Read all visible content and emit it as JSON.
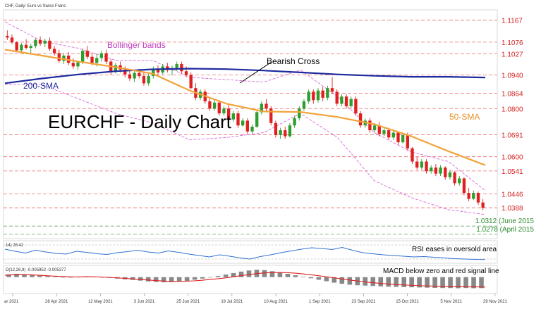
{
  "window_title": "CHF, Daily: Euro vs Swiss Franc",
  "chart_data": [
    {
      "type": "candlestick",
      "title": "EURCHF - Daily Chart",
      "ylim": [
        1.026,
        1.121
      ],
      "price_levels": [
        "1.1167",
        "1.1076",
        "1.1027",
        "1.0940",
        "1.0864",
        "1.0800",
        "1.0691",
        "1.0600",
        "1.0541",
        "1.0446",
        "1.0388"
      ],
      "price_level_values": [
        1.1167,
        1.1076,
        1.1027,
        1.094,
        1.0864,
        1.08,
        1.0691,
        1.06,
        1.0541,
        1.0446,
        1.0388
      ],
      "extra_levels": [
        {
          "label": "1.0312 (June 2015",
          "value": 1.0312
        },
        {
          "label": "1.0278 (April 2015",
          "value": 1.0278
        }
      ],
      "annotations": [
        "Bollinger bands",
        "Bearish Cross",
        "200-SMA",
        "50-SMA"
      ],
      "x_ticks": [
        "ar 2021",
        "28 Apr 2021",
        "12 May 2021",
        "3 Jun 2021",
        "25 Jun 2021",
        "19 Jul 2021",
        "10 Aug 2021",
        "1 Sep 2021",
        "23 Sep 2021",
        "15 Oct 2021",
        "5 Nov 2021",
        "29 Nov 2021"
      ],
      "series": [
        {
          "name": "200-SMA",
          "color": "#1c2a9e",
          "values": [
            1.0905,
            1.0925,
            1.0942,
            1.0955,
            1.0963,
            1.0966,
            1.0964,
            1.0958,
            1.095,
            1.0942,
            1.0936,
            1.0932,
            1.0932,
            1.0929
          ]
        },
        {
          "name": "50-SMA",
          "color": "#f2a33a",
          "values": [
            1.1045,
            1.102,
            1.0995,
            1.0972,
            1.0945,
            1.0875,
            1.082,
            1.0788,
            1.0786,
            1.0765,
            1.0735,
            1.0685,
            1.0623,
            1.0565
          ]
        },
        {
          "name": "Bollinger bands",
          "color": "#d96bd9",
          "upper": [
            1.116,
            1.108,
            1.105,
            1.1,
            1.1,
            1.093,
            1.092,
            1.091,
            1.096,
            1.085,
            1.07,
            1.062,
            1.058,
            1.046
          ],
          "lower": [
            1.09,
            1.09,
            1.084,
            1.078,
            1.074,
            1.067,
            1.068,
            1.07,
            1.078,
            1.068,
            1.05,
            1.043,
            1.038,
            1.036
          ]
        }
      ],
      "candles": [
        [
          1.1102,
          1.1125,
          1.1085,
          1.1095
        ],
        [
          1.1095,
          1.1108,
          1.1068,
          1.1075
        ],
        [
          1.1075,
          1.108,
          1.1035,
          1.1042
        ],
        [
          1.1042,
          1.1072,
          1.103,
          1.1065
        ],
        [
          1.1065,
          1.1088,
          1.1045,
          1.1052
        ],
        [
          1.1052,
          1.107,
          1.1028,
          1.106
        ],
        [
          1.106,
          1.1092,
          1.105,
          1.1085
        ],
        [
          1.1085,
          1.11,
          1.106,
          1.107
        ],
        [
          1.107,
          1.109,
          1.1055,
          1.1082
        ],
        [
          1.1082,
          1.1095,
          1.104,
          1.1048
        ],
        [
          1.1048,
          1.106,
          1.102,
          1.103
        ],
        [
          1.103,
          1.1045,
          1.099,
          1.0998
        ],
        [
          1.0998,
          1.103,
          1.0985,
          1.102
        ],
        [
          1.102,
          1.1035,
          1.098,
          1.099
        ],
        [
          1.099,
          1.101,
          1.0965,
          1.0975
        ],
        [
          1.0975,
          1.1,
          1.096,
          1.0992
        ],
        [
          1.0992,
          1.105,
          1.0985,
          1.104
        ],
        [
          1.104,
          1.106,
          1.1005,
          1.1015
        ],
        [
          1.1015,
          1.103,
          1.098,
          1.099
        ],
        [
          1.099,
          1.1025,
          1.0975,
          1.101
        ],
        [
          1.101,
          1.104,
          1.0995,
          1.103
        ],
        [
          1.103,
          1.1045,
          1.0985,
          1.0995
        ],
        [
          1.0995,
          1.1005,
          1.094,
          1.0952
        ],
        [
          1.0952,
          1.099,
          1.0945,
          1.098
        ],
        [
          1.098,
          1.0995,
          1.095,
          1.0962
        ],
        [
          1.0962,
          1.0975,
          1.093,
          1.0942
        ],
        [
          1.0942,
          1.0958,
          1.0915,
          1.0925
        ],
        [
          1.0925,
          1.096,
          1.091,
          1.0948
        ],
        [
          1.0948,
          1.0965,
          1.0925,
          1.0935
        ],
        [
          1.0935,
          1.095,
          1.0895,
          1.0905
        ],
        [
          1.0905,
          1.0945,
          1.0895,
          1.0935
        ],
        [
          1.0935,
          1.0975,
          1.0925,
          1.0965
        ],
        [
          1.0965,
          1.098,
          1.094,
          1.095
        ],
        [
          1.095,
          1.0985,
          1.0942,
          1.0975
        ],
        [
          1.0975,
          1.099,
          1.095,
          1.096
        ],
        [
          1.096,
          1.0978,
          1.0938,
          1.0968
        ],
        [
          1.0968,
          1.0995,
          1.0955,
          1.0985
        ],
        [
          1.0985,
          1.0995,
          1.0945,
          1.0955
        ],
        [
          1.0955,
          1.0975,
          1.093,
          1.094
        ],
        [
          1.094,
          1.095,
          1.088,
          1.0885
        ],
        [
          1.0885,
          1.0905,
          1.0835,
          1.0845
        ],
        [
          1.0845,
          1.088,
          1.0835,
          1.087
        ],
        [
          1.087,
          1.088,
          1.082,
          1.083
        ],
        [
          1.083,
          1.0845,
          1.079,
          1.08
        ],
        [
          1.08,
          1.084,
          1.079,
          1.0825
        ],
        [
          1.0825,
          1.0835,
          1.077,
          1.078
        ],
        [
          1.078,
          1.081,
          1.077,
          1.08
        ],
        [
          1.08,
          1.0815,
          1.0745,
          1.0755
        ],
        [
          1.0755,
          1.079,
          1.0745,
          1.078
        ],
        [
          1.078,
          1.079,
          1.072,
          1.073
        ],
        [
          1.073,
          1.076,
          1.0725,
          1.075
        ],
        [
          1.075,
          1.076,
          1.0695,
          1.0705
        ],
        [
          1.0705,
          1.0735,
          1.0695,
          1.0725
        ],
        [
          1.0725,
          1.079,
          1.072,
          1.0785
        ],
        [
          1.0785,
          1.083,
          1.0775,
          1.082
        ],
        [
          1.082,
          1.084,
          1.079,
          1.08
        ],
        [
          1.08,
          1.081,
          1.073,
          1.074
        ],
        [
          1.074,
          1.075,
          1.068,
          1.069
        ],
        [
          1.069,
          1.072,
          1.0675,
          1.071
        ],
        [
          1.071,
          1.0725,
          1.0675,
          1.0685
        ],
        [
          1.0685,
          1.074,
          1.068,
          1.073
        ],
        [
          1.073,
          1.077,
          1.072,
          1.076
        ],
        [
          1.076,
          1.081,
          1.075,
          1.08
        ],
        [
          1.08,
          1.084,
          1.079,
          1.083
        ],
        [
          1.083,
          1.088,
          1.082,
          1.087
        ],
        [
          1.087,
          1.088,
          1.082,
          1.0835
        ],
        [
          1.0835,
          1.0885,
          1.0825,
          1.0875
        ],
        [
          1.0875,
          1.089,
          1.083,
          1.0845
        ],
        [
          1.0845,
          1.0895,
          1.0835,
          1.0885
        ],
        [
          1.0885,
          1.093,
          1.086,
          1.087
        ],
        [
          1.087,
          1.088,
          1.081,
          1.082
        ],
        [
          1.082,
          1.086,
          1.081,
          1.085
        ],
        [
          1.085,
          1.086,
          1.08,
          1.081
        ],
        [
          1.081,
          1.085,
          1.08,
          1.084
        ],
        [
          1.084,
          1.085,
          1.077,
          1.078
        ],
        [
          1.078,
          1.079,
          1.072,
          1.073
        ],
        [
          1.073,
          1.076,
          1.072,
          1.075
        ],
        [
          1.075,
          1.076,
          1.07,
          1.071
        ],
        [
          1.071,
          1.074,
          1.07,
          1.073
        ],
        [
          1.073,
          1.0745,
          1.0685,
          1.0695
        ],
        [
          1.0695,
          1.072,
          1.0685,
          1.071
        ],
        [
          1.071,
          1.072,
          1.067,
          1.068
        ],
        [
          1.068,
          1.071,
          1.067,
          1.07
        ],
        [
          1.07,
          1.0705,
          1.065,
          1.066
        ],
        [
          1.066,
          1.07,
          1.0655,
          1.069
        ],
        [
          1.069,
          1.07,
          1.0625,
          1.0635
        ],
        [
          1.0635,
          1.064,
          1.057,
          1.058
        ],
        [
          1.058,
          1.06,
          1.0545,
          1.0555
        ],
        [
          1.0555,
          1.059,
          1.0545,
          1.058
        ],
        [
          1.058,
          1.059,
          1.053,
          1.054
        ],
        [
          1.054,
          1.0565,
          1.053,
          1.0555
        ],
        [
          1.0555,
          1.057,
          1.052,
          1.053
        ],
        [
          1.053,
          1.0565,
          1.052,
          1.0555
        ],
        [
          1.0555,
          1.056,
          1.0505,
          1.0515
        ],
        [
          1.0515,
          1.0545,
          1.0505,
          1.0535
        ],
        [
          1.0535,
          1.054,
          1.048,
          1.049
        ],
        [
          1.049,
          1.052,
          1.048,
          1.051
        ],
        [
          1.051,
          1.0515,
          1.044,
          1.045
        ],
        [
          1.045,
          1.047,
          1.0415,
          1.0425
        ],
        [
          1.0425,
          1.046,
          1.042,
          1.045
        ],
        [
          1.045,
          1.0455,
          1.04,
          1.041
        ],
        [
          1.041,
          1.0425,
          1.0378,
          1.0388
        ]
      ]
    },
    {
      "type": "line",
      "label": "14) 28.42",
      "annotation": "RSI eases in oversold area",
      "ylim": [
        20,
        80
      ],
      "series": [
        {
          "name": "RSI",
          "color": "#2f6fd1",
          "values": [
            58,
            52,
            47,
            55,
            50,
            46,
            44,
            52,
            49,
            45,
            43,
            48,
            51,
            55,
            50,
            47,
            53,
            49,
            44,
            40,
            36,
            42,
            38,
            33,
            30,
            37,
            42,
            48,
            53,
            58,
            62,
            60,
            57,
            63,
            55,
            48,
            45,
            42,
            40,
            38,
            36,
            37,
            35,
            33,
            31,
            30,
            29,
            28.42
          ]
        }
      ]
    },
    {
      "type": "bar",
      "label": "D(12,26,9) -0.005952  -0.005377",
      "annotation": "MACD below zero and red signal line",
      "ylim": [
        -0.0085,
        0.006
      ],
      "series": [
        {
          "name": "MACD",
          "color": "#888888",
          "values": [
            0.0015,
            0.0018,
            0.0016,
            0.0012,
            0.0008,
            0.0005,
            0.0002,
            -0.0001,
            -0.0002,
            0.0001,
            0.0004,
            0.0002,
            0,
            -0.0004,
            -0.0008,
            -0.0012,
            -0.0015,
            -0.0019,
            -0.0023,
            -0.0026,
            -0.0028,
            -0.0027,
            -0.0024,
            -0.002,
            -0.0014,
            -0.0008,
            -0.0002,
            0.0006,
            0.0014,
            0.0022,
            0.003,
            0.0036,
            0.004,
            0.0038,
            0.0032,
            0.0025,
            0.0018,
            0.001,
            0.0002,
            -0.0006,
            -0.0014,
            -0.0022,
            -0.003,
            -0.0036,
            -0.0041,
            -0.0044,
            -0.0046,
            -0.0048,
            -0.005,
            -0.0052,
            -0.0053,
            -0.0054,
            -0.0055,
            -0.0056,
            -0.0057,
            -0.0058,
            -0.0059,
            -0.0059,
            -0.006,
            -0.0059,
            -0.006,
            -0.005952
          ]
        },
        {
          "name": "Signal",
          "color": "#e02020",
          "values": [
            0.001,
            0.0013,
            0.0014,
            0.0013,
            0.0011,
            0.0009,
            0.0006,
            0.0004,
            0.0002,
            0.0001,
            0.0002,
            0.0002,
            0.0001,
            -0.0001,
            -0.0003,
            -0.0006,
            -0.0009,
            -0.0012,
            -0.0015,
            -0.0018,
            -0.0021,
            -0.0023,
            -0.0023,
            -0.0022,
            -0.002,
            -0.0017,
            -0.0013,
            -0.0009,
            -0.0004,
            0.0002,
            0.0008,
            0.0014,
            0.0019,
            0.0023,
            0.0025,
            0.0025,
            0.0024,
            0.0021,
            0.0017,
            0.0012,
            0.0007,
            0.0001,
            -0.0005,
            -0.0011,
            -0.0017,
            -0.0022,
            -0.0027,
            -0.0031,
            -0.0035,
            -0.0038,
            -0.0041,
            -0.0043,
            -0.0045,
            -0.0047,
            -0.0048,
            -0.005,
            -0.0051,
            -0.0052,
            -0.0052,
            -0.0053,
            -0.0053,
            -0.005377
          ]
        }
      ]
    }
  ]
}
